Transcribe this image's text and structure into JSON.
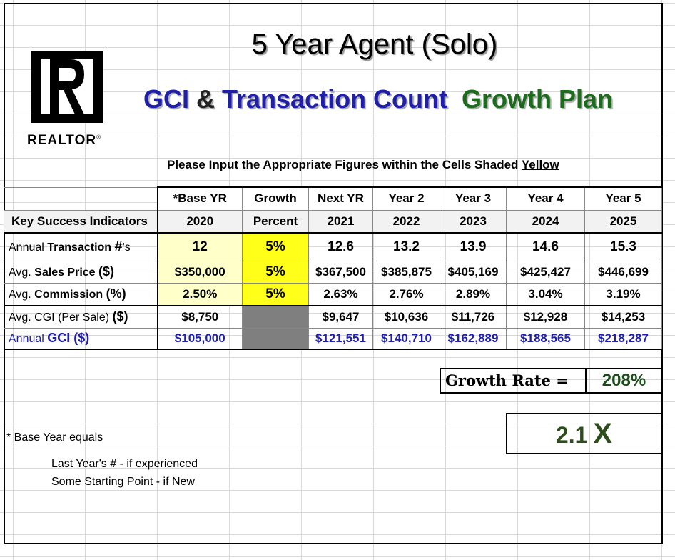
{
  "header": {
    "title": "5 Year Agent (Solo)",
    "subtitle_part1": "GCI",
    "subtitle_part2": " & ",
    "subtitle_part3": "Transaction Count",
    "subtitle_part4": "Growth Plan"
  },
  "logo": {
    "text": "REALTOR",
    "mark": "®",
    "icon": "realtor-r-logo"
  },
  "instruction": {
    "text": "Please Input the Appropriate Figures within the Cells Shaded ",
    "emphasis": "Yellow"
  },
  "table": {
    "header_row1": [
      "*Base YR",
      "Growth",
      "Next YR",
      "Year 2",
      "Year 3",
      "Year 4",
      "Year 5"
    ],
    "header_row2_label": "Key Success Indicators",
    "header_row2": [
      "2020",
      "Percent",
      "2021",
      "2022",
      "2023",
      "2024",
      "2025"
    ],
    "rows": [
      {
        "label_pre": "Annual ",
        "label_bold": "Transaction ",
        "label_big": "#",
        "label_post": "'s",
        "base": "12",
        "growth": "5%",
        "years": [
          "12.6",
          "13.2",
          "13.9",
          "14.6",
          "15.3"
        ]
      },
      {
        "label_pre": "Avg. ",
        "label_bold": "Sales Price ",
        "label_big": "($)",
        "label_post": "",
        "base": "$350,000",
        "growth": "5%",
        "years": [
          "$367,500",
          "$385,875",
          "$405,169",
          "$425,427",
          "$446,699"
        ]
      },
      {
        "label_pre": "Avg. ",
        "label_bold": "Commission ",
        "label_big": "(%)",
        "label_post": "",
        "base": "2.50%",
        "growth": "5%",
        "years": [
          "2.63%",
          "2.76%",
          "2.89%",
          "3.04%",
          "3.19%"
        ]
      },
      {
        "label_pre": "Avg. CGI (Per Sale) ",
        "label_bold": "",
        "label_big": "($)",
        "label_post": "",
        "base": "$8,750",
        "growth": "",
        "years": [
          "$9,647",
          "$10,636",
          "$11,726",
          "$12,928",
          "$14,253"
        ]
      },
      {
        "label_pre": "Annual ",
        "label_bold": "GCI ",
        "label_big": "($)",
        "label_post": "",
        "base": "$105,000",
        "growth": "",
        "years": [
          "$121,551",
          "$140,710",
          "$162,889",
          "$188,565",
          "$218,287"
        ]
      }
    ]
  },
  "growth_rate": {
    "label": "Growth Rate =",
    "value": "208%"
  },
  "multiplier": {
    "value": "2.1",
    "suffix": "X"
  },
  "notes": {
    "base_year": "* Base Year equals",
    "line1": "Last Year's # - if experienced",
    "line2": "Some Starting Point - if New"
  },
  "colors": {
    "blue": "#1f1fa8",
    "green": "#1d6b1d",
    "input_yellow": "#ffffc9",
    "growth_yellow": "#ffff1a",
    "disabled_gray": "#7f7f7f"
  }
}
